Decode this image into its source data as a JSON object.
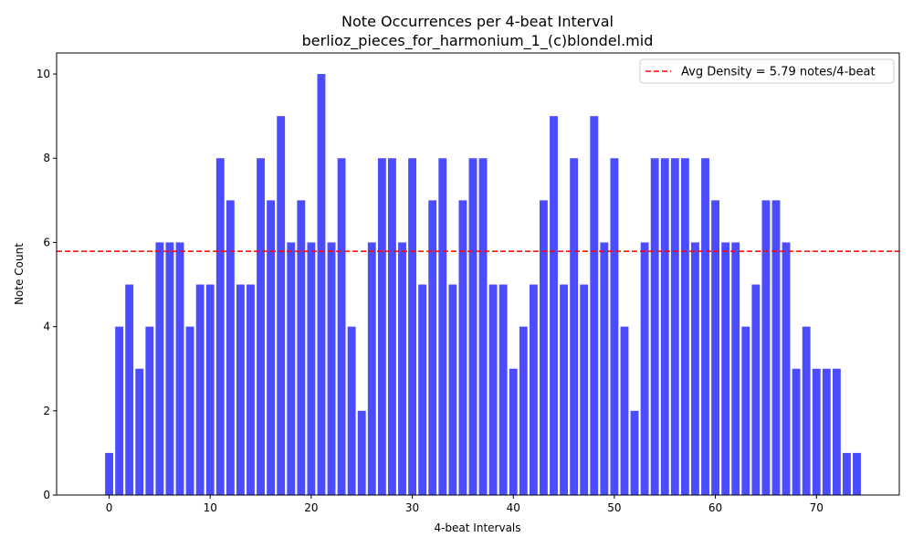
{
  "chart_data": {
    "type": "bar",
    "title": "Note Occurrences per 4-beat Interval",
    "subtitle": "berlioz_pieces_for_harmonium_1_(c)blondel.mid",
    "xlabel": "4-beat Intervals",
    "ylabel": "Note Count",
    "x": [
      0,
      1,
      2,
      3,
      4,
      5,
      6,
      7,
      8,
      9,
      10,
      11,
      12,
      13,
      14,
      15,
      16,
      17,
      18,
      19,
      20,
      21,
      22,
      23,
      24,
      25,
      26,
      27,
      28,
      29,
      30,
      31,
      32,
      33,
      34,
      35,
      36,
      37,
      38,
      39,
      40,
      41,
      42,
      43,
      44,
      45,
      46,
      47,
      48,
      49,
      50,
      51,
      52,
      53,
      54,
      55,
      56,
      57,
      58,
      59,
      60,
      61,
      62,
      63,
      64,
      65,
      66,
      67,
      68,
      69,
      70,
      71,
      72,
      73,
      74
    ],
    "values": [
      1,
      4,
      5,
      3,
      4,
      6,
      6,
      6,
      4,
      5,
      5,
      8,
      7,
      5,
      5,
      8,
      7,
      9,
      6,
      7,
      6,
      10,
      6,
      8,
      4,
      2,
      6,
      8,
      8,
      6,
      8,
      5,
      7,
      8,
      5,
      7,
      8,
      8,
      5,
      5,
      3,
      4,
      5,
      7,
      9,
      5,
      8,
      5,
      9,
      6,
      8,
      4,
      2,
      6,
      8,
      8,
      8,
      8,
      6,
      8,
      7,
      6,
      6,
      4,
      5,
      7,
      7,
      6,
      3,
      4,
      3,
      3,
      3,
      1,
      1
    ],
    "xlim": [
      -5.2,
      78.2
    ],
    "ylim": [
      0,
      10.5
    ],
    "xticks": [
      0,
      10,
      20,
      30,
      40,
      50,
      60,
      70
    ],
    "yticks": [
      0,
      2,
      4,
      6,
      8,
      10
    ],
    "bar_color": "#0000ff",
    "bar_opacity": 0.7,
    "bar_width": 0.8,
    "grid": false,
    "reference_line": {
      "value": 5.79,
      "label": "Avg Density = 5.79 notes/4-beat",
      "color": "#ff0000",
      "style": "dashed"
    },
    "legend_position": "top-right"
  }
}
